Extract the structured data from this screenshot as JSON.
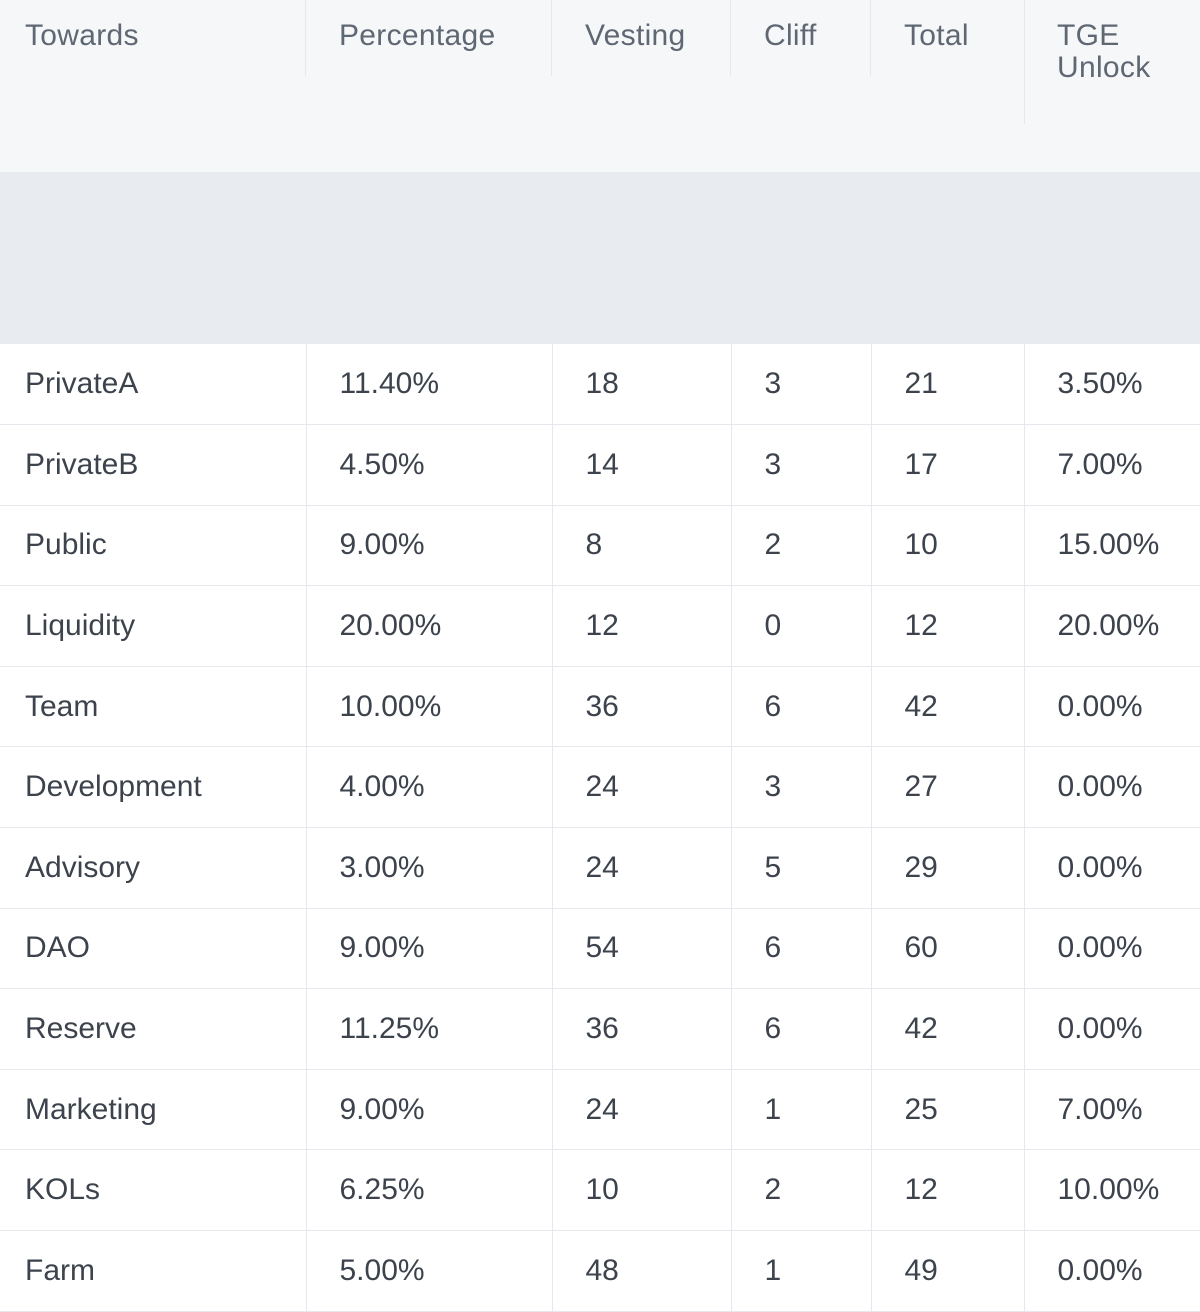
{
  "table": {
    "headers": {
      "towards": "Towards",
      "percentage": "Percentage",
      "vesting": "Vesting",
      "cliff": "Cliff",
      "total": "Total",
      "tge_unlock": "TGE Unlock"
    },
    "rows": [
      {
        "towards": "PrivateA",
        "percentage": "11.40%",
        "vesting": "18",
        "cliff": "3",
        "total": "21",
        "tge_unlock": "3.50%"
      },
      {
        "towards": "PrivateB",
        "percentage": "4.50%",
        "vesting": "14",
        "cliff": "3",
        "total": "17",
        "tge_unlock": "7.00%"
      },
      {
        "towards": "Public",
        "percentage": "9.00%",
        "vesting": "8",
        "cliff": "2",
        "total": "10",
        "tge_unlock": "15.00%"
      },
      {
        "towards": "Liquidity",
        "percentage": "20.00%",
        "vesting": "12",
        "cliff": "0",
        "total": "12",
        "tge_unlock": "20.00%"
      },
      {
        "towards": "Team",
        "percentage": "10.00%",
        "vesting": "36",
        "cliff": "6",
        "total": "42",
        "tge_unlock": "0.00%"
      },
      {
        "towards": "Development",
        "percentage": "4.00%",
        "vesting": "24",
        "cliff": "3",
        "total": "27",
        "tge_unlock": "0.00%"
      },
      {
        "towards": "Advisory",
        "percentage": "3.00%",
        "vesting": "24",
        "cliff": "5",
        "total": "29",
        "tge_unlock": "0.00%"
      },
      {
        "towards": "DAO",
        "percentage": "9.00%",
        "vesting": "54",
        "cliff": "6",
        "total": "60",
        "tge_unlock": "0.00%"
      },
      {
        "towards": "Reserve",
        "percentage": "11.25%",
        "vesting": "36",
        "cliff": "6",
        "total": "42",
        "tge_unlock": "0.00%"
      },
      {
        "towards": "Marketing",
        "percentage": "9.00%",
        "vesting": "24",
        "cliff": "1",
        "total": "25",
        "tge_unlock": "7.00%"
      },
      {
        "towards": "KOLs",
        "percentage": "6.25%",
        "vesting": "10",
        "cliff": "2",
        "total": "12",
        "tge_unlock": "10.00%"
      },
      {
        "towards": "Farm",
        "percentage": "5.00%",
        "vesting": "48",
        "cliff": "1",
        "total": "49",
        "tge_unlock": "0.00%"
      }
    ]
  }
}
